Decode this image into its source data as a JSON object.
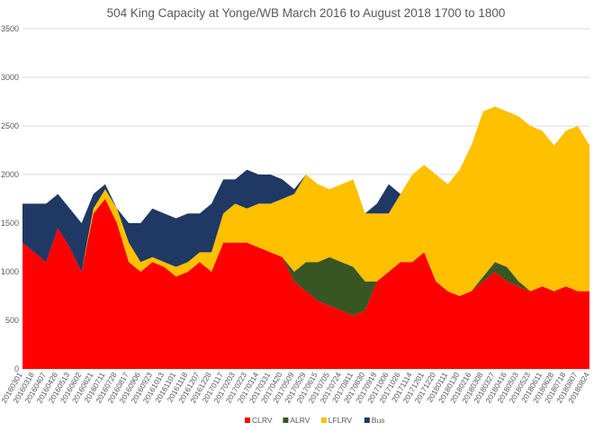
{
  "chart_data": {
    "type": "area",
    "stacked": true,
    "title": "504 King Capacity at Yonge/WB March 2016 to August 2018  1700 to 1800",
    "xlabel": "",
    "ylabel": "",
    "ylim": [
      0,
      3500
    ],
    "yticks": [
      0,
      500,
      1000,
      1500,
      2000,
      2500,
      3000,
      3500
    ],
    "grid": true,
    "legend": "bottom",
    "categories": [
      "20160301",
      "20160318",
      "20160407",
      "20160426",
      "20160513",
      "20160602",
      "20160621",
      "20160711",
      "20160728",
      "20160817",
      "20160906",
      "20160923",
      "20161013",
      "20161101",
      "20161118",
      "20161207",
      "20161228",
      "20170117",
      "20170203",
      "20170223",
      "20170314",
      "20170331",
      "20170420",
      "20170509",
      "20170529",
      "20170615",
      "20170705",
      "20170724",
      "20170811",
      "20170830",
      "20170919",
      "20171006",
      "20171026",
      "20171114",
      "20171201",
      "20171220",
      "20180111",
      "20180130",
      "20180216",
      "20180308",
      "20180327",
      "20180416",
      "20180503",
      "20180523",
      "20180611",
      "20180628",
      "20180718",
      "20180807",
      "20180824"
    ],
    "series": [
      {
        "name": "CLRV",
        "color": "#ff0000",
        "values": [
          1300,
          1200,
          1100,
          1450,
          1250,
          1000,
          1600,
          1750,
          1500,
          1100,
          1000,
          1100,
          1050,
          950,
          1000,
          1100,
          1000,
          1300,
          1300,
          1300,
          1250,
          1200,
          1150,
          900,
          800,
          700,
          650,
          600,
          550,
          600,
          900,
          1000,
          1100,
          1100,
          1200,
          900,
          800,
          750,
          800,
          900,
          1000,
          900,
          850,
          800,
          850,
          800,
          850,
          800,
          800
        ]
      },
      {
        "name": "ALRV",
        "color": "#375623",
        "values": [
          0,
          0,
          0,
          0,
          0,
          0,
          0,
          0,
          0,
          0,
          0,
          0,
          0,
          0,
          0,
          0,
          0,
          0,
          0,
          0,
          0,
          0,
          0,
          100,
          300,
          400,
          500,
          500,
          500,
          300,
          0,
          0,
          0,
          0,
          0,
          0,
          0,
          0,
          0,
          50,
          100,
          150,
          50,
          0,
          0,
          0,
          0,
          0,
          0
        ]
      },
      {
        "name": "LFLRV",
        "color": "#ffc000",
        "values": [
          0,
          0,
          0,
          0,
          0,
          0,
          50,
          100,
          150,
          200,
          100,
          50,
          50,
          100,
          100,
          100,
          200,
          300,
          400,
          350,
          450,
          500,
          600,
          800,
          900,
          800,
          700,
          800,
          900,
          700,
          700,
          600,
          700,
          900,
          900,
          1100,
          1100,
          1300,
          1500,
          1700,
          1600,
          1600,
          1700,
          1700,
          1600,
          1500,
          1600,
          1700,
          1500
        ]
      },
      {
        "name": "Bus",
        "color": "#1f3864",
        "values": [
          400,
          500,
          600,
          350,
          400,
          500,
          150,
          50,
          0,
          200,
          400,
          500,
          500,
          500,
          500,
          400,
          500,
          350,
          250,
          400,
          300,
          300,
          200,
          50,
          0,
          0,
          0,
          0,
          0,
          0,
          100,
          300,
          0,
          0,
          0,
          0,
          0,
          0,
          0,
          0,
          0,
          0,
          0,
          0,
          0,
          0,
          0,
          0,
          0
        ]
      }
    ]
  }
}
